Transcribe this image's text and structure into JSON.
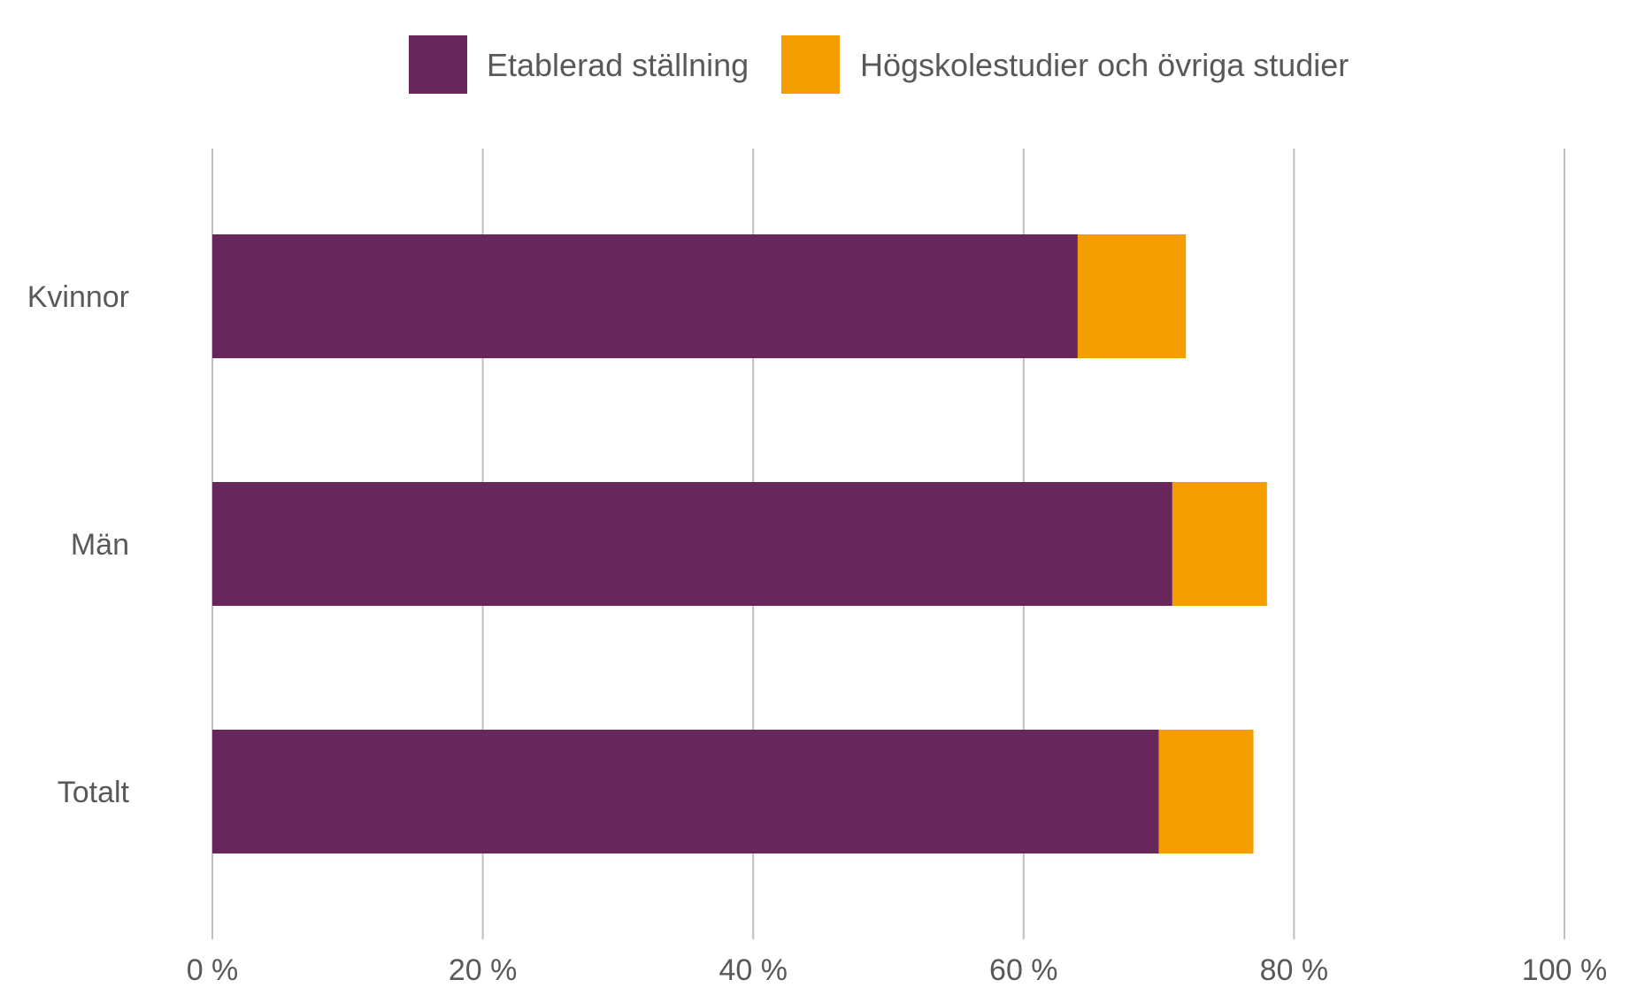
{
  "chart_data": {
    "type": "bar",
    "orientation": "horizontal",
    "stacked": true,
    "title": "",
    "xlabel": "",
    "ylabel": "",
    "categories": [
      "Kvinnor",
      "Män",
      "Totalt"
    ],
    "series": [
      {
        "name": "Etablerad ställning",
        "values": [
          64,
          71,
          70
        ],
        "color": "#68275a"
      },
      {
        "name": "Högskolestudier och övriga studier",
        "values": [
          8,
          7,
          7
        ],
        "color": "#f49d00"
      }
    ],
    "xlim": [
      0,
      100
    ],
    "xticks": [
      {
        "value": 0,
        "label": "0 %"
      },
      {
        "value": 20,
        "label": "20 %"
      },
      {
        "value": 40,
        "label": "40 %"
      },
      {
        "value": 60,
        "label": "60 %"
      },
      {
        "value": 80,
        "label": "80 %"
      },
      {
        "value": 100,
        "label": "100 %"
      }
    ],
    "grid": "vertical",
    "gridline_color": "#bfbfbf",
    "legend_position": "top-center"
  }
}
